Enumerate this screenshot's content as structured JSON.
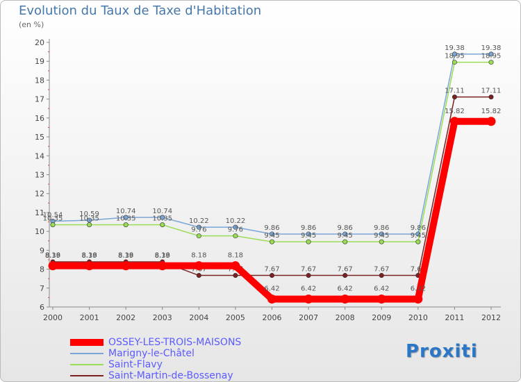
{
  "chart_data": {
    "type": "line",
    "title": "Evolution du Taux de Taxe d'Habitation",
    "ylabel": "(en %)",
    "xlabel": "",
    "ylim": [
      6,
      20
    ],
    "yticks": [
      6,
      7,
      8,
      9,
      10,
      11,
      12,
      13,
      14,
      15,
      16,
      17,
      18,
      19,
      20
    ],
    "categories": [
      "2000",
      "2001",
      "2002",
      "2003",
      "2004",
      "2005",
      "2006",
      "2007",
      "2008",
      "2009",
      "2010",
      "2011",
      "2012"
    ],
    "grid": false,
    "series": [
      {
        "name": "OSSEY-LES-TROIS-MAISONS",
        "color": "#ff0000",
        "values": [
          8.18,
          8.18,
          8.18,
          8.18,
          8.18,
          8.18,
          6.42,
          6.42,
          6.42,
          6.42,
          6.42,
          15.82,
          15.82
        ],
        "labels": [
          "8.18",
          "8.18",
          "8.18",
          "8.18",
          "8.18",
          "8.18",
          "6.42",
          "6.42",
          "6.42",
          "6.42",
          "6.42",
          "15.82",
          "15.82"
        ]
      },
      {
        "name": "Marigny-le-Châtel",
        "color": "#7aa6d6",
        "values": [
          10.54,
          10.59,
          10.74,
          10.74,
          10.22,
          10.22,
          9.86,
          9.86,
          9.86,
          9.86,
          9.86,
          19.38,
          19.38
        ],
        "labels": [
          "10.54",
          "10.59",
          "10.74",
          "10.74",
          "10.22",
          "10.22",
          "9.86",
          "9.86",
          "9.86",
          "9.86",
          "9.86",
          "19.38",
          "19.38"
        ]
      },
      {
        "name": "Saint-Flavy",
        "color": "#99dd55",
        "values": [
          10.35,
          10.35,
          10.35,
          10.35,
          9.76,
          9.76,
          9.45,
          9.45,
          9.45,
          9.45,
          9.45,
          18.95,
          18.95
        ],
        "labels": [
          "10.35",
          "10.35",
          "10.35",
          "10.35",
          "9.76",
          "9.76",
          "9.45",
          "9.45",
          "9.45",
          "9.45",
          "9.45",
          "18.95",
          "18.95"
        ]
      },
      {
        "name": "Saint-Martin-de-Bossenay",
        "color": "#7a2020",
        "values": [
          8.39,
          8.39,
          8.39,
          8.39,
          7.67,
          7.67,
          7.67,
          7.67,
          7.67,
          7.67,
          7.67,
          17.11,
          17.11
        ],
        "labels": [
          "8.39",
          "8.39",
          "8.39",
          "8.39",
          "7.67",
          "7.67",
          "7.67",
          "7.67",
          "7.67",
          "7.67",
          "7.67",
          "17.11",
          "17.11"
        ]
      }
    ],
    "legend_position": "bottom-left"
  },
  "logo": {
    "text": "Proxiti"
  }
}
